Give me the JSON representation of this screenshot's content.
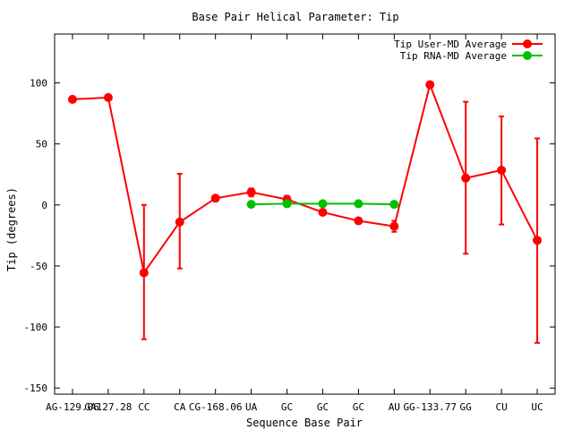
{
  "chart_data": {
    "type": "line",
    "title": "Base Pair Helical Parameter: Tip",
    "xlabel": "Sequence Base Pair",
    "ylabel": "Tip (degrees)",
    "ylim": [
      -155,
      140
    ],
    "yticks": [
      -150,
      -100,
      -50,
      0,
      50,
      100
    ],
    "grid": false,
    "legend_position": "top-right",
    "categories": [
      "AG-129.06",
      "GA127.28",
      "CC",
      "CA",
      "CG-168.06",
      "UA",
      "GC",
      "GC",
      "GC",
      "AU",
      "GG-133.77",
      "GG",
      "CU",
      "UC"
    ],
    "series": [
      {
        "name": "Tip User-MD Average",
        "color": "#ff0000",
        "values": [
          86.5,
          88,
          -55.5,
          -14,
          5.5,
          10.5,
          4.5,
          -6,
          -13,
          -17.5,
          98.5,
          22,
          28.5,
          -29
        ],
        "error_low": [
          null,
          null,
          -110,
          -52,
          null,
          7,
          1.5,
          -8,
          -15,
          -22,
          null,
          -40,
          -16,
          -113
        ],
        "error_high": [
          null,
          null,
          0,
          25.5,
          null,
          13.5,
          7.5,
          -4,
          -11,
          -13,
          null,
          84.5,
          72.5,
          54.5
        ]
      },
      {
        "name": "Tip RNA-MD Average",
        "color": "#00c000",
        "values": [
          null,
          null,
          null,
          null,
          null,
          0.5,
          1,
          1,
          1,
          0.5,
          null,
          null,
          null,
          null
        ]
      }
    ]
  }
}
